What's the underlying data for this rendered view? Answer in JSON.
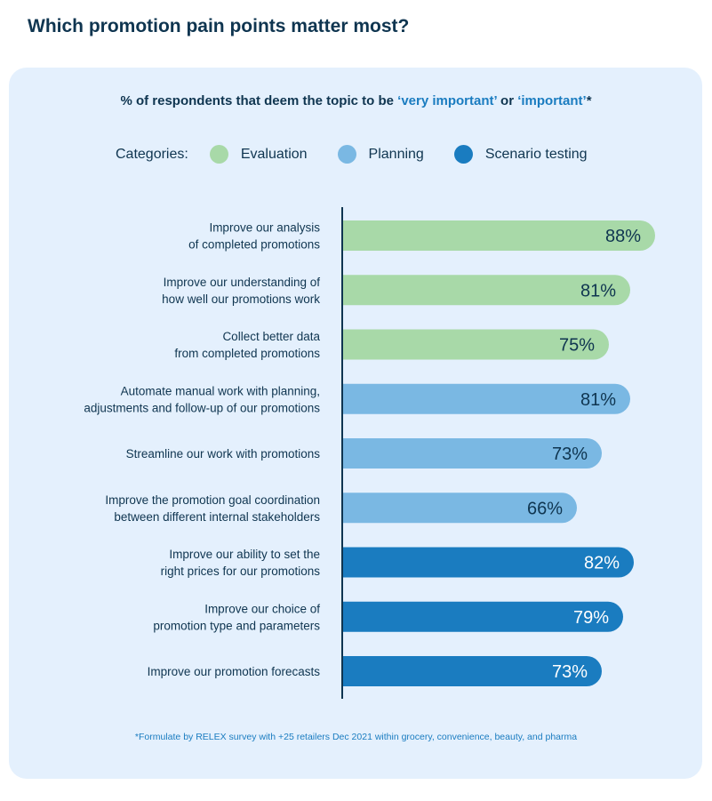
{
  "title": "Which promotion pain points matter most?",
  "chart_data": {
    "type": "bar",
    "orientation": "horizontal",
    "title": "Which promotion pain points matter most?",
    "subtitle_parts": [
      "% of respondents that deem the topic to be ",
      "‘very important’",
      " or ",
      "‘important’",
      "*"
    ],
    "legend_label": "Categories:",
    "legend": [
      {
        "name": "Evaluation",
        "color": "#a8d9a8"
      },
      {
        "name": "Planning",
        "color": "#7ab8e3"
      },
      {
        "name": "Scenario testing",
        "color": "#1a7cc0"
      }
    ],
    "xlim": [
      0,
      100
    ],
    "categories": [
      [
        "Improve our analysis",
        "of completed promotions"
      ],
      [
        "Improve our understanding of",
        "how well our promotions work"
      ],
      [
        "Collect better data",
        "from completed promotions"
      ],
      [
        "Automate manual work with planning,",
        "adjustments and follow-up of our promotions"
      ],
      [
        "Streamline our work with promotions"
      ],
      [
        "Improve the promotion goal coordination",
        "between different internal stakeholders"
      ],
      [
        "Improve our ability to set the",
        "right prices for our promotions"
      ],
      [
        "Improve our choice of",
        "promotion type and parameters"
      ],
      [
        "Improve our promotion forecasts"
      ]
    ],
    "values": [
      88,
      81,
      75,
      81,
      73,
      66,
      82,
      79,
      73
    ],
    "value_labels": [
      "88%",
      "81%",
      "75%",
      "81%",
      "73%",
      "66%",
      "82%",
      "79%",
      "73%"
    ],
    "groups": [
      "Evaluation",
      "Evaluation",
      "Evaluation",
      "Planning",
      "Planning",
      "Planning",
      "Scenario testing",
      "Scenario testing",
      "Scenario testing"
    ],
    "footnote": "*Formulate by RELEX survey with +25 retailers Dec 2021 within grocery, convenience, beauty, and pharma"
  }
}
